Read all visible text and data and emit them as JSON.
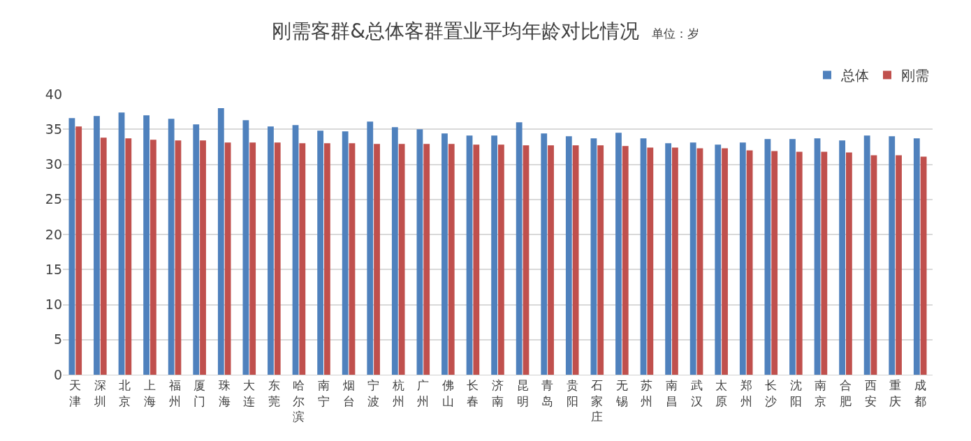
{
  "chart_data": {
    "type": "bar",
    "title": "刚需客群&总体客群置业平均年龄对比情况",
    "subtitle": "单位：岁",
    "categories": [
      "天津",
      "深圳",
      "北京",
      "上海",
      "福州",
      "厦门",
      "珠海",
      "大连",
      "东莞",
      "哈尔滨",
      "南宁",
      "烟台",
      "宁波",
      "杭州",
      "广州",
      "佛山",
      "长春",
      "济南",
      "昆明",
      "青岛",
      "贵阳",
      "石家庄",
      "无锡",
      "苏州",
      "南昌",
      "武汉",
      "太原",
      "郑州",
      "长沙",
      "沈阳",
      "南京",
      "合肥",
      "西安",
      "重庆",
      "成都"
    ],
    "series": [
      {
        "name": "总体",
        "color": "#4f81bd",
        "values": [
          36.6,
          36.9,
          37.4,
          37.0,
          36.5,
          35.7,
          38.0,
          36.3,
          35.4,
          35.6,
          34.8,
          34.7,
          36.1,
          35.3,
          35.0,
          34.4,
          34.1,
          34.1,
          36.0,
          34.4,
          34.0,
          33.7,
          34.5,
          33.7,
          33.0,
          33.1,
          32.8,
          33.1,
          33.6,
          33.6,
          33.7,
          33.4,
          34.1,
          34.0,
          33.7
        ]
      },
      {
        "name": "刚需",
        "color": "#c0504d",
        "values": [
          35.4,
          33.8,
          33.7,
          33.5,
          33.4,
          33.4,
          33.1,
          33.1,
          33.1,
          33.0,
          33.0,
          33.0,
          32.9,
          32.9,
          32.9,
          32.9,
          32.8,
          32.8,
          32.7,
          32.7,
          32.7,
          32.7,
          32.6,
          32.4,
          32.4,
          32.3,
          32.3,
          32.0,
          31.9,
          31.8,
          31.8,
          31.7,
          31.3,
          31.3,
          31.1
        ]
      }
    ],
    "ylim": [
      0,
      40
    ],
    "yticks": [
      0,
      5,
      10,
      15,
      20,
      25,
      30,
      35,
      40
    ],
    "grid": "y",
    "legend": "top right"
  }
}
